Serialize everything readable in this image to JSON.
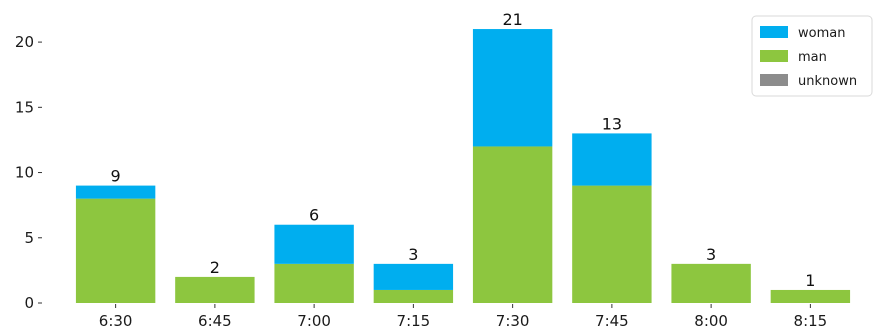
{
  "chart_data": {
    "type": "bar",
    "stacked": true,
    "categories": [
      "6:30",
      "6:45",
      "7:00",
      "7:15",
      "7:30",
      "7:45",
      "8:00",
      "8:15"
    ],
    "series": [
      {
        "name": "man",
        "color": "#8dc63f",
        "values": [
          8,
          2,
          3,
          1,
          12,
          9,
          3,
          1
        ]
      },
      {
        "name": "woman",
        "color": "#00aeef",
        "values": [
          1,
          0,
          3,
          2,
          9,
          4,
          0,
          0
        ]
      },
      {
        "name": "unknown",
        "color": "#8c8c8c",
        "values": [
          0,
          0,
          0,
          0,
          0,
          0,
          0,
          0
        ]
      }
    ],
    "totals": [
      "9",
      "2",
      "6",
      "3",
      "21",
      "13",
      "3",
      "1"
    ],
    "yticks": [
      "0",
      "5",
      "10",
      "15",
      "20"
    ],
    "ylim": [
      0,
      22
    ],
    "legend": {
      "position": "top-right",
      "items": [
        "woman",
        "man",
        "unknown"
      ]
    },
    "grid": false
  }
}
